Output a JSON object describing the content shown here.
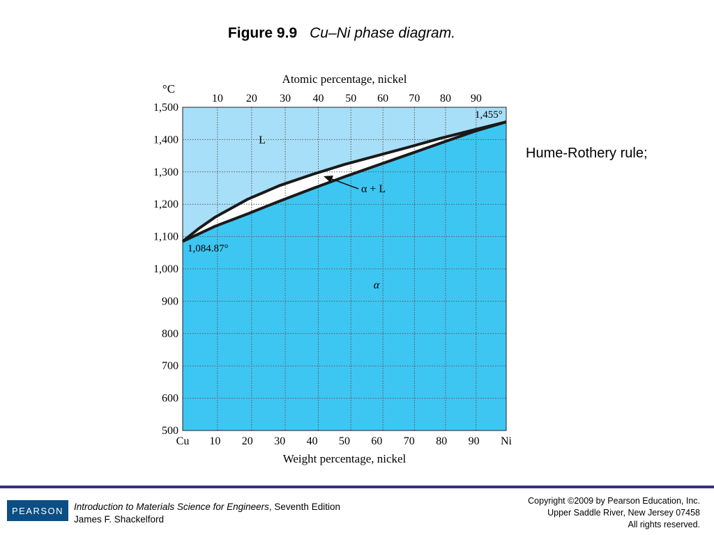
{
  "slide": {
    "figure_number": "Figure 9.9",
    "figure_caption": "Cu–Ni phase diagram.",
    "note": "Hume-Rothery rule;"
  },
  "diagram": {
    "top_axis_title": "Atomic percentage, nickel",
    "top_ticks": [
      "10",
      "20",
      "30",
      "40",
      "50",
      "60",
      "70",
      "80",
      "90"
    ],
    "y_unit": "°C",
    "y_ticks": [
      "1,500",
      "1,400",
      "1,300",
      "1,200",
      "1,100",
      "1,000",
      "900",
      "800",
      "700",
      "600",
      "500"
    ],
    "x_ticks": [
      "Cu",
      "10",
      "20",
      "30",
      "40",
      "50",
      "60",
      "70",
      "80",
      "90",
      "Ni"
    ],
    "x_axis_title": "Weight percentage, nickel",
    "labels": {
      "liquid": "L",
      "two_phase": "α + L",
      "solid": "α",
      "ni_melt": "1,455°",
      "cu_melt": "1,084.87°"
    },
    "colors": {
      "liquid_fill": "#a8dff8",
      "solid_fill": "#3ec6f2",
      "two_phase_fill": "#ffffff",
      "curve": "#1a1a1a",
      "grid": "#555555"
    },
    "liquidus": {
      "wt_pct_ni": [
        0,
        5,
        10,
        20,
        30,
        40,
        50,
        60,
        70,
        80,
        90,
        100
      ],
      "temp_c": [
        1085,
        1125,
        1160,
        1215,
        1258,
        1292,
        1323,
        1350,
        1377,
        1405,
        1430,
        1455
      ]
    },
    "solidus": {
      "wt_pct_ni": [
        0,
        10,
        20,
        30,
        40,
        50,
        60,
        70,
        80,
        90,
        100
      ],
      "temp_c": [
        1085,
        1132,
        1170,
        1210,
        1248,
        1285,
        1320,
        1355,
        1390,
        1425,
        1455
      ]
    }
  },
  "footer": {
    "publisher_logo": "PEARSON",
    "book_title": "Introduction to Materials Science for Engineers",
    "book_edition": ", Seventh Edition",
    "author": "James F. Shackelford",
    "copyright_line1": "Copyright ©2009 by Pearson Education, Inc.",
    "copyright_line2": "Upper Saddle River, New Jersey 07458",
    "copyright_line3": "All rights reserved."
  }
}
